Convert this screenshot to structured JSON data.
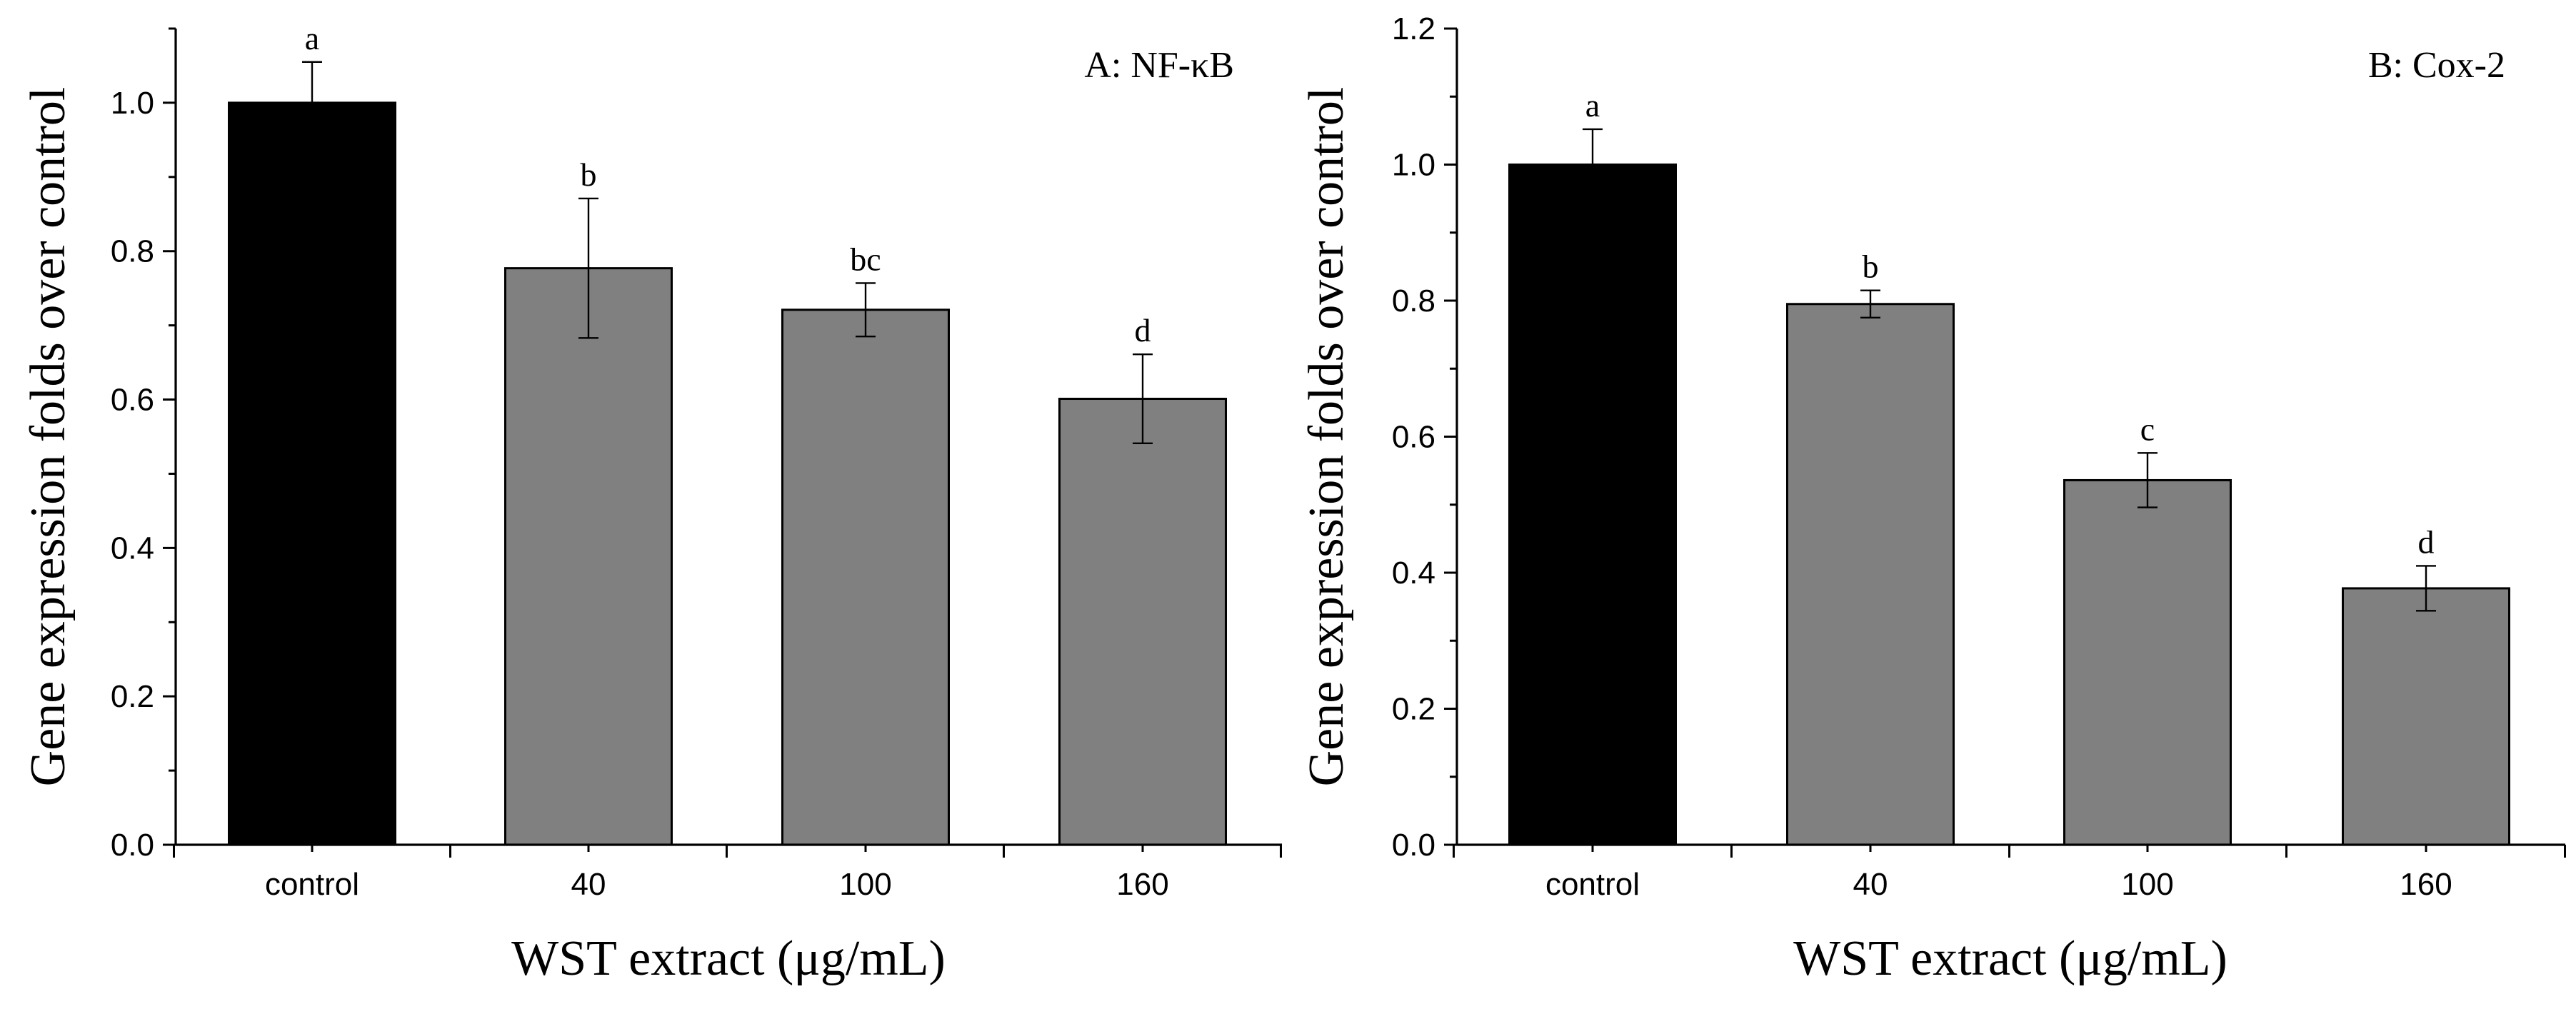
{
  "chart_data": [
    {
      "type": "bar",
      "panel_title": "A: NF-κB",
      "categories": [
        "control",
        "40",
        "100",
        "160"
      ],
      "values": [
        1.0,
        0.777,
        0.721,
        0.601
      ],
      "errors": [
        0.055,
        0.094,
        0.036,
        0.06
      ],
      "significance": [
        "a",
        "b",
        "bc",
        "d"
      ],
      "bar_colors": [
        "#000000",
        "#808080",
        "#808080",
        "#808080"
      ],
      "xlabel": "WST extract (μg/mL)",
      "ylabel": "Gene expression folds over control",
      "ylim": [
        0,
        1.1
      ],
      "yticks": [
        0.0,
        0.2,
        0.4,
        0.6,
        0.8,
        1.0
      ],
      "ytick_labels": [
        "0.0",
        "0.2",
        "0.4",
        "0.6",
        "0.8",
        "1.0"
      ],
      "title_position": "top-right"
    },
    {
      "type": "bar",
      "panel_title": "B: Cox-2",
      "categories": [
        "control",
        "40",
        "100",
        "160"
      ],
      "values": [
        1.0,
        0.795,
        0.536,
        0.377
      ],
      "errors": [
        0.052,
        0.02,
        0.04,
        0.033
      ],
      "significance": [
        "a",
        "b",
        "c",
        "d"
      ],
      "bar_colors": [
        "#000000",
        "#808080",
        "#808080",
        "#808080"
      ],
      "xlabel": "WST extract (μg/mL)",
      "ylabel": "Gene expression folds over control",
      "ylim": [
        0,
        1.2
      ],
      "yticks": [
        0.0,
        0.2,
        0.4,
        0.6,
        0.8,
        1.0,
        1.2
      ],
      "ytick_labels": [
        "0.0",
        "0.2",
        "0.4",
        "0.6",
        "0.8",
        "1.0",
        "1.2"
      ],
      "title_position": "top-right"
    }
  ]
}
